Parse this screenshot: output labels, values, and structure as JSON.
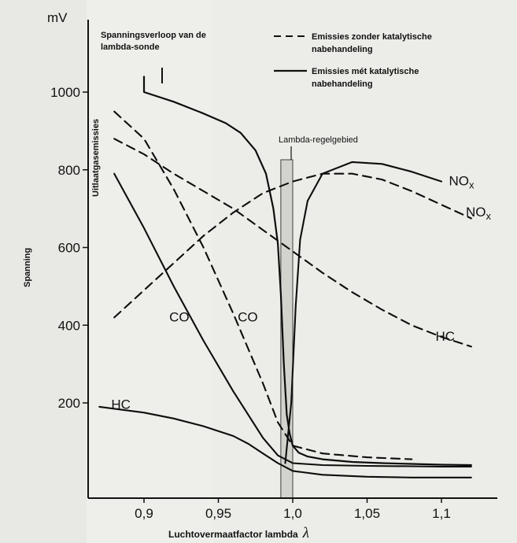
{
  "chart_data": {
    "type": "line",
    "unit_label": "mV",
    "ylabel": "Spanning",
    "ylabel2": "Uitlaatgasemissies",
    "xlabel": "Luchtovermaatfactor lambda",
    "xlabel_symbol": "λ",
    "xlim": [
      0.87,
      1.12
    ],
    "ylim": [
      0,
      1100
    ],
    "yticks": [
      200,
      400,
      600,
      800,
      1000
    ],
    "xticks": [
      0.9,
      0.95,
      1.0,
      1.05,
      1.1
    ],
    "xtick_labels": [
      "0,9",
      "0,95",
      "1,0",
      "1,05",
      "1,1"
    ],
    "grid": false,
    "lambda_window": {
      "label": "Lambda-regelgebied",
      "from": 0.992,
      "to": 1.0
    },
    "legend": {
      "dashed": "Emissies zonder katalytische nabehandeling",
      "solid": "Emissies mét katalytische nabehandeling"
    },
    "sensor_label": "Spanningsverloop van de lambda-sonde",
    "series": [
      {
        "name": "Spanningsverloop van de lambda-sonde",
        "style": "solid",
        "width": 2.2,
        "x": [
          0.9,
          0.9,
          0.92,
          0.94,
          0.955,
          0.965,
          0.975,
          0.982,
          0.987,
          0.99,
          0.992,
          0.994,
          0.996,
          0.998,
          1.0,
          1.004,
          1.01,
          1.02,
          1.04,
          1.06,
          1.08,
          1.1,
          1.12
        ],
        "y": [
          1040,
          1000,
          975,
          945,
          920,
          895,
          850,
          790,
          700,
          610,
          480,
          300,
          170,
          120,
          90,
          72,
          62,
          55,
          48,
          45,
          43,
          41,
          40
        ]
      },
      {
        "name": "NOx",
        "style": "solid",
        "x": [
          0.995,
          0.999,
          1.002,
          1.005,
          1.01,
          1.02,
          1.04,
          1.06,
          1.08,
          1.1
        ],
        "y": [
          45,
          200,
          450,
          620,
          720,
          790,
          820,
          815,
          795,
          770
        ]
      },
      {
        "name": "NOx",
        "style": "dashed",
        "x": [
          0.88,
          0.9,
          0.92,
          0.94,
          0.96,
          0.98,
          1.0,
          1.02,
          1.04,
          1.06,
          1.08,
          1.1,
          1.12
        ],
        "y": [
          420,
          490,
          560,
          630,
          690,
          740,
          770,
          790,
          790,
          775,
          745,
          710,
          675
        ]
      },
      {
        "name": "CO",
        "style": "dashed",
        "x": [
          0.88,
          0.9,
          0.92,
          0.94,
          0.96,
          0.97,
          0.98,
          0.99,
          1.0,
          1.02,
          1.05,
          1.08
        ],
        "y": [
          950,
          880,
          750,
          600,
          430,
          340,
          250,
          150,
          90,
          70,
          60,
          55
        ]
      },
      {
        "name": "CO",
        "style": "solid",
        "x": [
          0.88,
          0.9,
          0.92,
          0.94,
          0.96,
          0.98,
          0.99,
          1.0,
          1.02,
          1.05,
          1.08,
          1.1,
          1.12
        ],
        "y": [
          790,
          650,
          500,
          360,
          230,
          110,
          65,
          45,
          40,
          38,
          37,
          36,
          36
        ]
      },
      {
        "name": "HC",
        "style": "dashed",
        "x": [
          0.88,
          0.9,
          0.92,
          0.94,
          0.96,
          0.98,
          1.0,
          1.02,
          1.04,
          1.06,
          1.08,
          1.1,
          1.12
        ],
        "y": [
          880,
          840,
          790,
          745,
          700,
          645,
          590,
          535,
          485,
          440,
          400,
          370,
          345
        ]
      },
      {
        "name": "HC",
        "style": "solid",
        "x": [
          0.87,
          0.9,
          0.92,
          0.94,
          0.96,
          0.97,
          0.98,
          0.99,
          1.0,
          1.02,
          1.05,
          1.08,
          1.1,
          1.12
        ],
        "y": [
          190,
          175,
          160,
          140,
          115,
          95,
          70,
          45,
          25,
          15,
          10,
          8,
          8,
          8
        ]
      }
    ],
    "labels": [
      {
        "text": "CO",
        "x": 0.917,
        "y": 410
      },
      {
        "text": "CO",
        "x": 0.963,
        "y": 410
      },
      {
        "text": "HC",
        "x": 0.878,
        "y": 185
      },
      {
        "text": "HC",
        "x": 1.096,
        "y": 360
      },
      {
        "text": "NO",
        "sub": "x",
        "x": 1.105,
        "y": 760
      },
      {
        "text": "NO",
        "sub": "x",
        "x": 1.133,
        "y": 680
      }
    ]
  }
}
